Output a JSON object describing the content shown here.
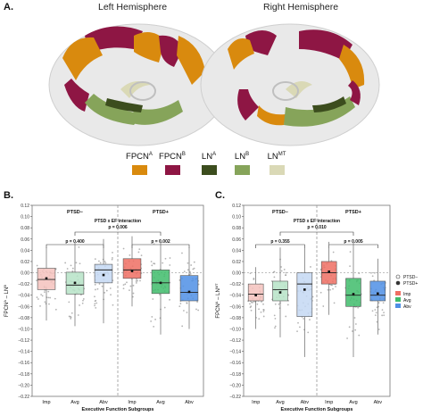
{
  "panel_a": {
    "letter": "A.",
    "left_title": "Left Hemisphere",
    "right_title": "Right Hemisphere"
  },
  "legend": [
    {
      "label": "FPCN",
      "sup": "A",
      "color": "#d98a0e"
    },
    {
      "label": "FPCN",
      "sup": "B",
      "color": "#8e1644"
    },
    {
      "label": "LN",
      "sup": "A",
      "color": "#3c4d1e"
    },
    {
      "label": "LN",
      "sup": "B",
      "color": "#86a45a"
    },
    {
      "label": "LN",
      "sup": "MT",
      "color": "#dad9b6"
    }
  ],
  "chart_data": [
    {
      "type": "box",
      "panel": "B.",
      "ylabel": "FPCN",
      "ylabel_sup": "A",
      "ylabel_mid": " – LN",
      "ylabel_sup2": "B",
      "ylim": [
        -0.22,
        0.12
      ],
      "yticks": [
        "0.12",
        "0.10",
        "0.08",
        "0.06",
        "0.04",
        "0.02",
        "0.00",
        "−0.02",
        "−0.04",
        "−0.06",
        "−0.08",
        "−0.10",
        "−0.12",
        "−0.14",
        "−0.16",
        "−0.18",
        "−0.20",
        "−0.22"
      ],
      "xlabel": "Executive Function Subgroups",
      "categories": [
        "Imp",
        "Avg",
        "Abv",
        "Imp",
        "Avg",
        "Abv"
      ],
      "facets": [
        "PTSD−",
        "PTSD+"
      ],
      "interaction_text": "PTSD x EF interaction",
      "interaction_p": "p = 0.006",
      "left_p": "p = 0.400",
      "right_p": "p = 0.002",
      "boxes": [
        {
          "q1": -0.03,
          "median": -0.012,
          "q3": 0.008,
          "mean": -0.01,
          "wlo": -0.085,
          "whi": 0.045,
          "color": "#f4c2bd"
        },
        {
          "q1": -0.038,
          "median": -0.022,
          "q3": 0.001,
          "mean": -0.018,
          "wlo": -0.095,
          "whi": 0.055,
          "color": "#b6e3c7"
        },
        {
          "q1": -0.018,
          "median": 0.005,
          "q3": 0.015,
          "mean": -0.004,
          "wlo": -0.09,
          "whi": 0.06,
          "color": "#c4d8f3"
        },
        {
          "q1": -0.01,
          "median": 0.005,
          "q3": 0.025,
          "mean": 0.003,
          "wlo": -0.06,
          "whi": 0.065,
          "color": "#ef6f63"
        },
        {
          "q1": -0.037,
          "median": -0.018,
          "q3": 0.005,
          "mean": -0.018,
          "wlo": -0.11,
          "whi": 0.06,
          "color": "#3fbc6b"
        },
        {
          "q1": -0.05,
          "median": -0.035,
          "q3": -0.005,
          "mean": -0.034,
          "wlo": -0.1,
          "whi": 0.045,
          "color": "#4f8fe5"
        }
      ]
    },
    {
      "type": "box",
      "panel": "C.",
      "ylabel": "FPCN",
      "ylabel_sup": "A",
      "ylabel_mid": " – LN",
      "ylabel_sup2": "MT",
      "ylim": [
        -0.22,
        0.12
      ],
      "yticks": [
        "0.12",
        "0.10",
        "0.08",
        "0.06",
        "0.04",
        "0.02",
        "0.00",
        "−0.02",
        "−0.04",
        "−0.06",
        "−0.08",
        "−0.10",
        "−0.12",
        "−0.14",
        "−0.16",
        "−0.18",
        "−0.20",
        "−0.22"
      ],
      "xlabel": "Executive Function Subgroups",
      "categories": [
        "Imp",
        "Avg",
        "Abv",
        "Imp",
        "Avg",
        "Abv"
      ],
      "facets": [
        "PTSD−",
        "PTSD+"
      ],
      "interaction_text": "PTSD x EF interaction",
      "interaction_p": "p = 0.010",
      "left_p": "p = 0.355",
      "right_p": "p = 0.005",
      "boxes": [
        {
          "q1": -0.05,
          "median": -0.038,
          "q3": -0.02,
          "mean": -0.04,
          "wlo": -0.1,
          "whi": 0.01,
          "color": "#f4c2bd"
        },
        {
          "q1": -0.05,
          "median": -0.03,
          "q3": -0.015,
          "mean": -0.035,
          "wlo": -0.115,
          "whi": 0.045,
          "color": "#b6e3c7"
        },
        {
          "q1": -0.078,
          "median": -0.02,
          "q3": 0.0,
          "mean": -0.03,
          "wlo": -0.15,
          "whi": 0.05,
          "color": "#c4d8f3"
        },
        {
          "q1": -0.02,
          "median": 0.0,
          "q3": 0.02,
          "mean": 0.002,
          "wlo": -0.075,
          "whi": 0.055,
          "color": "#ef6f63"
        },
        {
          "q1": -0.06,
          "median": -0.04,
          "q3": -0.01,
          "mean": -0.038,
          "wlo": -0.15,
          "whi": 0.055,
          "color": "#3fbc6b"
        },
        {
          "q1": -0.05,
          "median": -0.04,
          "q3": -0.015,
          "mean": -0.037,
          "wlo": -0.11,
          "whi": 0.025,
          "color": "#4f8fe5"
        }
      ],
      "legend_right": [
        {
          "label": "PTSD−",
          "symbol": "circle"
        },
        {
          "label": "PTSD+",
          "symbol": "filled-circle"
        },
        {
          "label": "Imp",
          "color": "#ef6f63"
        },
        {
          "label": "Avg",
          "color": "#3fbc6b"
        },
        {
          "label": "Abv",
          "color": "#4f8fe5"
        }
      ]
    }
  ]
}
